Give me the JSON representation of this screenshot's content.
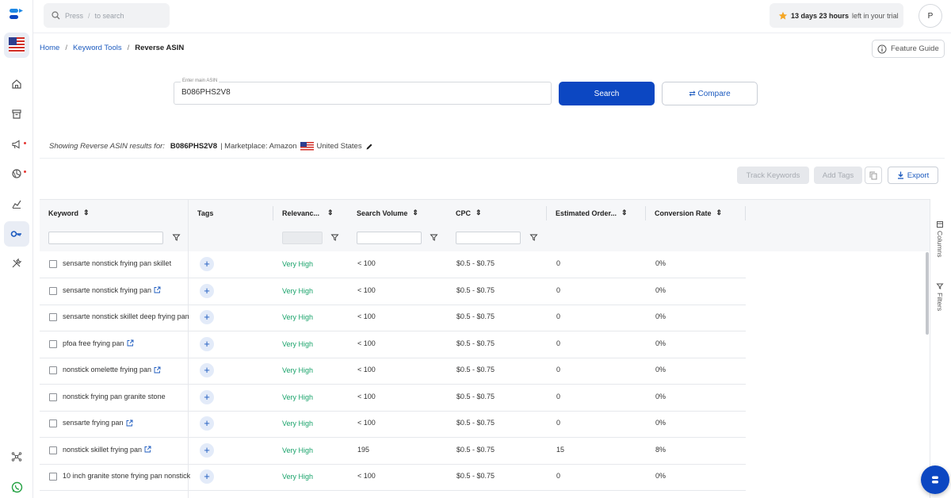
{
  "search": {
    "placeholder_press": "Press",
    "placeholder_key": "/",
    "placeholder_rest": "to search"
  },
  "trial": {
    "highlight": "13 days 23 hours",
    "rest": "left in your trial"
  },
  "user": {
    "initial": "P"
  },
  "breadcrumb": {
    "home": "Home",
    "tools": "Keyword Tools",
    "current": "Reverse ASIN",
    "sep": "/"
  },
  "feature_guide": "Feature Guide",
  "asin_input": {
    "label": "Enter main ASIN",
    "value": "B086PHS2V8"
  },
  "buttons": {
    "search": "Search",
    "compare": "Compare",
    "track": "Track Keywords",
    "add_tags": "Add Tags",
    "export": "Export"
  },
  "showing": {
    "prefix": "Showing Reverse ASIN results for:",
    "asin": "B086PHS2V8",
    "marketplace": "| Marketplace: Amazon",
    "country": "United States"
  },
  "columns": [
    "Keyword",
    "Tags",
    "Relevanc...",
    "Search Volume",
    "CPC",
    "Estimated Order...",
    "Conversion Rate"
  ],
  "side_panel": {
    "columns": "Columns",
    "filters": "Filters"
  },
  "rows": [
    {
      "keyword": "sensarte nonstick frying pan skillet",
      "link": false,
      "relevance": "Very High",
      "volume": "< 100",
      "cpc": "$0.5 - $0.75",
      "orders": "0",
      "conversion": "0%"
    },
    {
      "keyword": "sensarte nonstick frying pan",
      "link": true,
      "relevance": "Very High",
      "volume": "< 100",
      "cpc": "$0.5 - $0.75",
      "orders": "0",
      "conversion": "0%"
    },
    {
      "keyword": "sensarte nonstick skillet deep frying pan",
      "link": false,
      "relevance": "Very High",
      "volume": "< 100",
      "cpc": "$0.5 - $0.75",
      "orders": "0",
      "conversion": "0%"
    },
    {
      "keyword": "pfoa free frying pan",
      "link": true,
      "relevance": "Very High",
      "volume": "< 100",
      "cpc": "$0.5 - $0.75",
      "orders": "0",
      "conversion": "0%"
    },
    {
      "keyword": "nonstick omelette frying pan",
      "link": true,
      "relevance": "Very High",
      "volume": "< 100",
      "cpc": "$0.5 - $0.75",
      "orders": "0",
      "conversion": "0%"
    },
    {
      "keyword": "nonstick frying pan granite stone",
      "link": false,
      "relevance": "Very High",
      "volume": "< 100",
      "cpc": "$0.5 - $0.75",
      "orders": "0",
      "conversion": "0%"
    },
    {
      "keyword": "sensarte frying pan",
      "link": true,
      "relevance": "Very High",
      "volume": "< 100",
      "cpc": "$0.5 - $0.75",
      "orders": "0",
      "conversion": "0%"
    },
    {
      "keyword": "nonstick skillet frying pan",
      "link": true,
      "relevance": "Very High",
      "volume": "195",
      "cpc": "$0.5 - $0.75",
      "orders": "15",
      "conversion": "8%"
    },
    {
      "keyword": "10 inch granite stone frying pan nonstick",
      "link": false,
      "relevance": "Very High",
      "volume": "< 100",
      "cpc": "$0.5 - $0.75",
      "orders": "0",
      "conversion": "0%"
    }
  ],
  "colors": {
    "primary": "#0c47c2",
    "link": "#1d5bbf",
    "relevance": "#1aa36b"
  }
}
